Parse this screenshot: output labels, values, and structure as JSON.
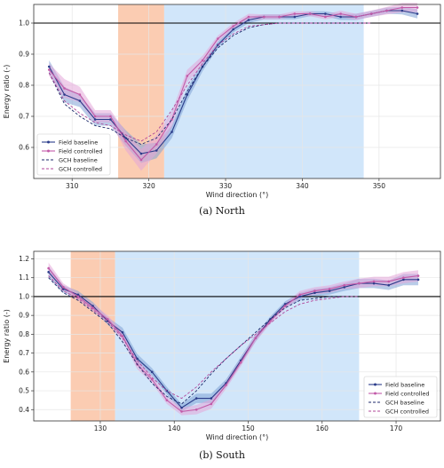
{
  "colors": {
    "field_baseline": "#2b3c8a",
    "field_baseline_band": "#7fa3d6",
    "field_controlled": "#c25aa8",
    "field_controlled_band": "#e3a6d8",
    "gch_baseline": "#1c2a6b",
    "gch_controlled": "#b0479a",
    "region_orange": "#fbc9ae",
    "region_blue": "#cfe5fa",
    "reference_line": "#000000",
    "grid": "#e6e6e6"
  },
  "chart_data": [
    {
      "type": "line",
      "caption": "(a) North",
      "xlabel": "Wind direction (°)",
      "ylabel": "Energy ratio (-)",
      "xlim": [
        305,
        358
      ],
      "ylim": [
        0.5,
        1.06
      ],
      "xticks": [
        310,
        320,
        330,
        340,
        350
      ],
      "yticks": [
        0.6,
        0.7,
        0.8,
        0.9,
        1.0
      ],
      "xtick_labels": [
        "310",
        "320",
        "330",
        "340",
        "350"
      ],
      "ytick_labels": [
        "0.6",
        "0.7",
        "0.8",
        "0.9",
        "1.0"
      ],
      "grid": true,
      "reference_line_y": 1.0,
      "shaded_regions": [
        {
          "x0": 316,
          "x1": 322,
          "color_key": "region_orange"
        },
        {
          "x0": 322,
          "x1": 348,
          "color_key": "region_blue"
        }
      ],
      "legend_position": "bottom-left",
      "series": [
        {
          "name": "Field baseline",
          "style": "solid-marker",
          "color_key": "field_baseline",
          "band_color_key": "field_baseline_band",
          "x": [
            307,
            309,
            311,
            313,
            315,
            317,
            319,
            321,
            323,
            325,
            327,
            329,
            331,
            333,
            335,
            337,
            339,
            341,
            343,
            345,
            347,
            349,
            351,
            353,
            355
          ],
          "y": [
            0.86,
            0.77,
            0.75,
            0.69,
            0.69,
            0.63,
            0.58,
            0.59,
            0.65,
            0.77,
            0.86,
            0.93,
            0.98,
            1.01,
            1.02,
            1.02,
            1.02,
            1.03,
            1.03,
            1.02,
            1.02,
            1.03,
            1.04,
            1.04,
            1.03
          ],
          "band": [
            0.02,
            0.025,
            0.02,
            0.02,
            0.02,
            0.025,
            0.03,
            0.025,
            0.02,
            0.02,
            0.015,
            0.01,
            0.01,
            0.01,
            0.008,
            0.008,
            0.008,
            0.008,
            0.008,
            0.01,
            0.01,
            0.01,
            0.01,
            0.012,
            0.015
          ]
        },
        {
          "name": "Field controlled",
          "style": "solid-marker",
          "color_key": "field_controlled",
          "band_color_key": "field_controlled_band",
          "x": [
            307,
            309,
            311,
            313,
            315,
            317,
            319,
            321,
            323,
            325,
            327,
            329,
            331,
            333,
            335,
            337,
            339,
            341,
            343,
            345,
            347,
            349,
            351,
            353,
            355
          ],
          "y": [
            0.85,
            0.79,
            0.77,
            0.7,
            0.7,
            0.62,
            0.56,
            0.61,
            0.69,
            0.83,
            0.88,
            0.95,
            0.99,
            1.02,
            1.02,
            1.02,
            1.03,
            1.03,
            1.02,
            1.03,
            1.02,
            1.03,
            1.04,
            1.05,
            1.05
          ],
          "band": [
            0.02,
            0.03,
            0.025,
            0.02,
            0.02,
            0.03,
            0.035,
            0.03,
            0.025,
            0.02,
            0.015,
            0.01,
            0.01,
            0.01,
            0.008,
            0.008,
            0.008,
            0.008,
            0.008,
            0.01,
            0.01,
            0.01,
            0.012,
            0.015,
            0.015
          ]
        },
        {
          "name": "GCH baseline",
          "style": "dashed",
          "color_key": "gch_baseline",
          "x": [
            307,
            309,
            311,
            313,
            315,
            317,
            319,
            321,
            323,
            325,
            327,
            329,
            331,
            333,
            335,
            337,
            339,
            341,
            343,
            345,
            347,
            349
          ],
          "y": [
            0.84,
            0.74,
            0.7,
            0.67,
            0.66,
            0.63,
            0.61,
            0.63,
            0.69,
            0.78,
            0.86,
            0.92,
            0.96,
            0.985,
            0.995,
            1.0,
            1.0,
            1.0,
            1.0,
            1.0,
            1.0,
            1.0
          ]
        },
        {
          "name": "GCH controlled",
          "style": "dashed",
          "color_key": "gch_controlled",
          "x": [
            307,
            309,
            311,
            313,
            315,
            317,
            319,
            321,
            323,
            325,
            327,
            329,
            331,
            333,
            335,
            337,
            339,
            341,
            343,
            345,
            347,
            349
          ],
          "y": [
            0.84,
            0.75,
            0.71,
            0.68,
            0.67,
            0.64,
            0.62,
            0.65,
            0.72,
            0.8,
            0.87,
            0.93,
            0.965,
            0.99,
            0.995,
            1.0,
            1.0,
            1.0,
            1.0,
            1.0,
            1.0,
            1.0
          ]
        }
      ]
    },
    {
      "type": "line",
      "caption": "(b) South",
      "xlabel": "Wind direction (°)",
      "ylabel": "Energy ratio (-)",
      "xlim": [
        121,
        176
      ],
      "ylim": [
        0.34,
        1.24
      ],
      "xticks": [
        130,
        140,
        150,
        160,
        170
      ],
      "yticks": [
        0.4,
        0.5,
        0.6,
        0.7,
        0.8,
        0.9,
        1.0,
        1.1,
        1.2
      ],
      "xtick_labels": [
        "130",
        "140",
        "150",
        "160",
        "170"
      ],
      "ytick_labels": [
        "0.4",
        "0.5",
        "0.6",
        "0.7",
        "0.8",
        "0.9",
        "1.0",
        "1.1",
        "1.2"
      ],
      "grid": true,
      "reference_line_y": 1.0,
      "shaded_regions": [
        {
          "x0": 126,
          "x1": 132,
          "color_key": "region_orange"
        },
        {
          "x0": 132,
          "x1": 165,
          "color_key": "region_blue"
        }
      ],
      "legend_position": "bottom-right",
      "series": [
        {
          "name": "Field baseline",
          "style": "solid-marker",
          "color_key": "field_baseline",
          "band_color_key": "field_baseline_band",
          "x": [
            123,
            125,
            127,
            129,
            131,
            133,
            135,
            137,
            139,
            141,
            143,
            145,
            147,
            149,
            151,
            153,
            155,
            157,
            159,
            161,
            163,
            165,
            167,
            169,
            171,
            173
          ],
          "y": [
            1.13,
            1.04,
            1.01,
            0.95,
            0.87,
            0.81,
            0.67,
            0.6,
            0.5,
            0.41,
            0.46,
            0.46,
            0.54,
            0.66,
            0.78,
            0.88,
            0.96,
            1.0,
            1.02,
            1.03,
            1.05,
            1.07,
            1.07,
            1.06,
            1.09,
            1.09
          ],
          "band": [
            0.03,
            0.02,
            0.02,
            0.02,
            0.02,
            0.025,
            0.025,
            0.02,
            0.02,
            0.02,
            0.025,
            0.025,
            0.02,
            0.02,
            0.02,
            0.015,
            0.015,
            0.02,
            0.02,
            0.02,
            0.02,
            0.025,
            0.025,
            0.025,
            0.03,
            0.03
          ]
        },
        {
          "name": "Field controlled",
          "style": "solid-marker",
          "color_key": "field_controlled",
          "band_color_key": "field_controlled_band",
          "x": [
            123,
            125,
            127,
            129,
            131,
            133,
            135,
            137,
            139,
            141,
            143,
            145,
            147,
            149,
            151,
            153,
            155,
            157,
            159,
            161,
            163,
            165,
            167,
            169,
            171,
            173
          ],
          "y": [
            1.15,
            1.05,
            1.0,
            0.94,
            0.88,
            0.79,
            0.64,
            0.56,
            0.45,
            0.39,
            0.4,
            0.43,
            0.53,
            0.65,
            0.78,
            0.87,
            0.95,
            1.01,
            1.03,
            1.04,
            1.06,
            1.07,
            1.08,
            1.08,
            1.1,
            1.11
          ],
          "band": [
            0.03,
            0.02,
            0.02,
            0.02,
            0.02,
            0.025,
            0.025,
            0.02,
            0.02,
            0.02,
            0.025,
            0.025,
            0.02,
            0.02,
            0.02,
            0.015,
            0.015,
            0.02,
            0.02,
            0.02,
            0.02,
            0.025,
            0.025,
            0.025,
            0.03,
            0.03
          ]
        },
        {
          "name": "GCH baseline",
          "style": "dashed",
          "color_key": "gch_baseline",
          "x": [
            123,
            125,
            127,
            129,
            131,
            133,
            135,
            137,
            139,
            141,
            143,
            145,
            147,
            149,
            151,
            153,
            155,
            157,
            159,
            161,
            163,
            165
          ],
          "y": [
            1.1,
            1.02,
            0.98,
            0.92,
            0.86,
            0.76,
            0.64,
            0.54,
            0.47,
            0.43,
            0.5,
            0.59,
            0.67,
            0.74,
            0.81,
            0.88,
            0.94,
            0.98,
            0.99,
            1.0,
            1.0,
            1.0
          ]
        },
        {
          "name": "GCH controlled",
          "style": "dashed",
          "color_key": "gch_controlled",
          "x": [
            123,
            125,
            127,
            129,
            131,
            133,
            135,
            137,
            139,
            141,
            143,
            145,
            147,
            149,
            151,
            153,
            155,
            157,
            159,
            161,
            163,
            165
          ],
          "y": [
            1.11,
            1.03,
            0.99,
            0.93,
            0.87,
            0.78,
            0.66,
            0.57,
            0.5,
            0.46,
            0.52,
            0.6,
            0.67,
            0.74,
            0.8,
            0.86,
            0.92,
            0.96,
            0.98,
            0.99,
            1.0,
            1.0
          ]
        }
      ]
    }
  ]
}
